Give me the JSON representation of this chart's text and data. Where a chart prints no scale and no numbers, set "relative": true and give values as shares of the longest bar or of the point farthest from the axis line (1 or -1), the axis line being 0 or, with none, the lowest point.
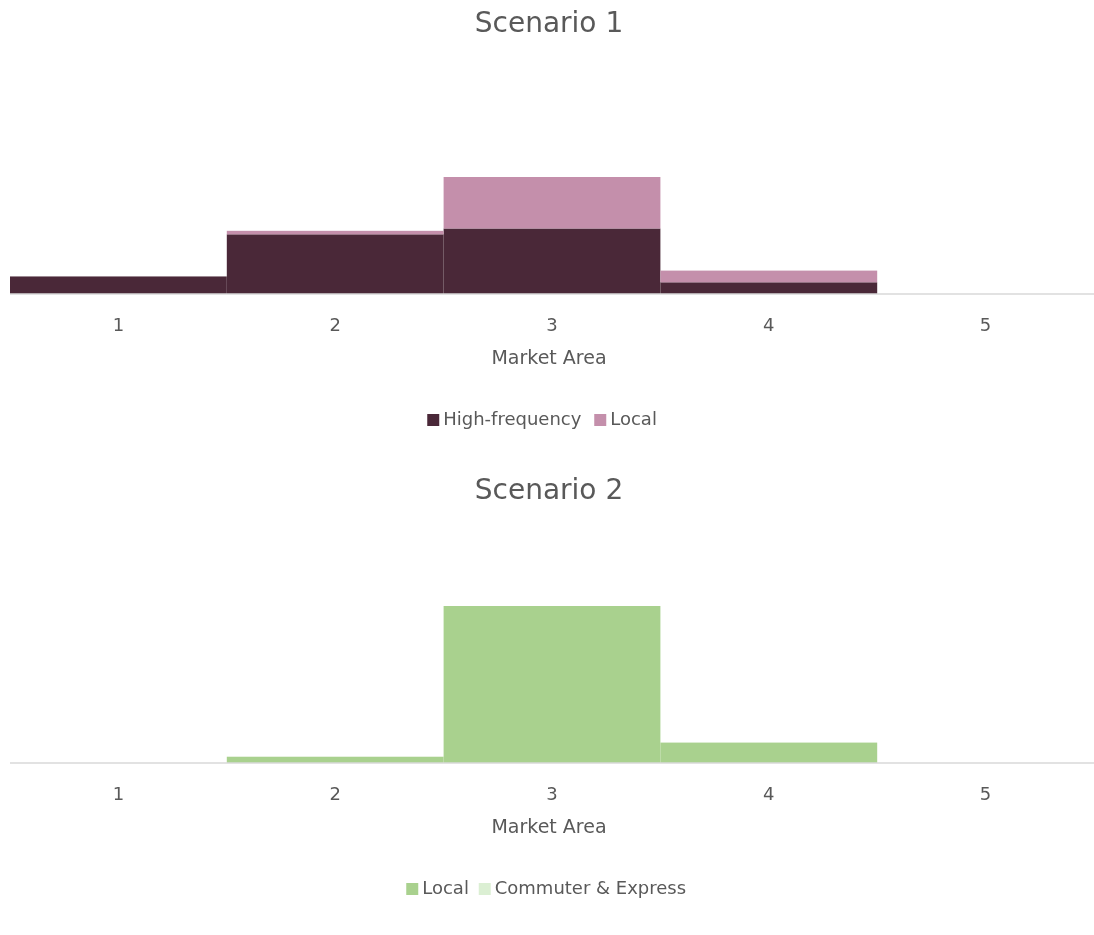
{
  "chart_data": [
    {
      "type": "bar",
      "title": "Scenario 1",
      "xlabel": "Market Area",
      "categories": [
        "1",
        "2",
        "3",
        "4",
        "5"
      ],
      "stacked": true,
      "relative": true,
      "legend": "bottom",
      "series": [
        {
          "name": "High-frequency",
          "color": "#4a2838",
          "values": [
            0.15,
            0.51,
            0.56,
            0.1,
            0
          ]
        },
        {
          "name": "Local",
          "color": "#c48fab",
          "values": [
            0,
            0.03,
            0.44,
            0.1,
            0
          ]
        }
      ]
    },
    {
      "type": "bar",
      "title": "Scenario 2",
      "xlabel": "Market Area",
      "categories": [
        "1",
        "2",
        "3",
        "4",
        "5"
      ],
      "stacked": true,
      "relative": true,
      "legend": "bottom",
      "series": [
        {
          "name": "Local",
          "color": "#a9d18e",
          "values": [
            0,
            0.04,
            1,
            0.13,
            0
          ]
        },
        {
          "name": "Commuter & Express",
          "color": "#dbefd3",
          "values": [
            0,
            0,
            0,
            0,
            0
          ]
        }
      ]
    }
  ]
}
